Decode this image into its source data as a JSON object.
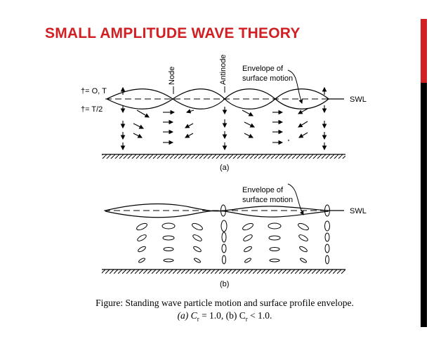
{
  "slide": {
    "title": "SMALL AMPLITUDE WAVE THEORY",
    "accent": "#d11f23"
  },
  "figure_a": {
    "label_node": "Node",
    "label_antinode": "Antinode",
    "label_envelope_line1": "Envelope of",
    "label_envelope_line2": "surface motion",
    "label_t1": "†= O, T",
    "label_t2": "†= T/2",
    "label_swl": "SWL",
    "panel_label": "(a)"
  },
  "figure_b": {
    "label_envelope_line1": "Envelope of",
    "label_envelope_line2": "surface motion",
    "label_swl": "SWL",
    "panel_label": "(b)"
  },
  "caption": {
    "line1": "Figure: Standing wave particle motion and surface profile envelope.",
    "line2_a": "(a) C",
    "line2_b": "r",
    "line2_c": " = 1.0,  (b) C",
    "line2_d": "r",
    "line2_e": " < 1.0."
  }
}
